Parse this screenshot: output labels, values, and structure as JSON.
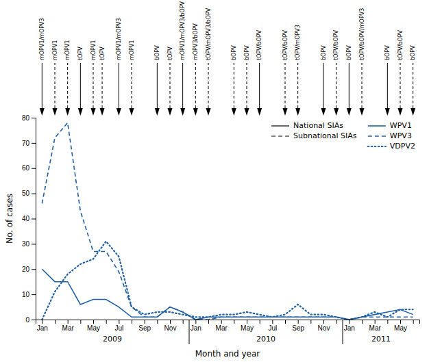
{
  "chart_data": {
    "type": "line",
    "x_label": "Month and year",
    "y_label": "No. of cases",
    "categories": [
      "Jan",
      null,
      "Mar",
      null,
      "May",
      null,
      "Jul",
      null,
      "Sep",
      null,
      "Nov",
      null,
      "Jan",
      null,
      "Mar",
      null,
      "May",
      null,
      "Jul",
      null,
      "Sep",
      null,
      "Nov",
      null,
      "Jan",
      null,
      "Mar",
      null,
      "May",
      null
    ],
    "ylim": [
      0,
      80
    ],
    "yticks": [
      0,
      10,
      20,
      30,
      40,
      50,
      60,
      70,
      80
    ],
    "grid": false,
    "legend": "upper right",
    "series": [
      {
        "name": "WPV1",
        "color": "#1f5fa6",
        "line_style": "solid",
        "values": [
          20,
          15,
          15,
          6,
          8,
          8,
          5,
          1,
          1,
          1,
          5,
          3,
          0,
          1,
          1,
          1,
          1,
          1,
          1,
          1,
          1,
          1,
          1,
          1,
          0,
          1,
          2,
          3,
          4,
          2
        ]
      },
      {
        "name": "WPV3",
        "color": "#1f5fa6",
        "line_style": "dashed",
        "values": [
          46,
          72,
          78,
          43,
          27,
          27,
          19,
          5,
          1,
          1,
          5,
          3,
          0,
          0,
          1,
          1,
          1,
          1,
          1,
          1,
          1,
          1,
          1,
          1,
          0,
          1,
          1,
          1,
          1,
          1
        ]
      },
      {
        "name": "VDPV2",
        "color": "#1f5fa6",
        "line_style": "dotted",
        "values": [
          0,
          11,
          18,
          22,
          24,
          31,
          25,
          5,
          2,
          3,
          3,
          2,
          1,
          1,
          2,
          2,
          3,
          2,
          1,
          2,
          6,
          2,
          2,
          1,
          0,
          1,
          3,
          1,
          4,
          4
        ]
      }
    ],
    "year_groups": [
      {
        "label": "2009",
        "count": 12
      },
      {
        "label": "2010",
        "count": 12
      },
      {
        "label": "2011",
        "count": 6
      }
    ],
    "annotation_legend": [
      {
        "name": "National SIAs",
        "line_style": "solid",
        "color": "#000000"
      },
      {
        "name": "Subnational SIAs",
        "line_style": "dashed",
        "color": "#000000"
      }
    ],
    "annotations": [
      {
        "x": 0.0,
        "text": "mOPV1/mOPV3",
        "line_style": "solid"
      },
      {
        "x": 1.0,
        "text": "mOPV1",
        "line_style": "dashed"
      },
      {
        "x": 2.0,
        "text": "mOPV1",
        "line_style": "dashed"
      },
      {
        "x": 3.0,
        "text": "tOPV",
        "line_style": "solid"
      },
      {
        "x": 4.0,
        "text": "mOPV1",
        "line_style": "dashed"
      },
      {
        "x": 4.7,
        "text": "tOPV",
        "line_style": "dashed"
      },
      {
        "x": 6.0,
        "text": "mOPV1/mOPV3",
        "line_style": "solid"
      },
      {
        "x": 7.0,
        "text": "mOPV1",
        "line_style": "dashed"
      },
      {
        "x": 9.0,
        "text": "bOPV",
        "line_style": "solid"
      },
      {
        "x": 10.0,
        "text": "tOPV",
        "line_style": "dashed"
      },
      {
        "x": 11.0,
        "text": "mOPV1/mOPV3/bOPV",
        "line_style": "solid"
      },
      {
        "x": 12.0,
        "text": "mOPV3/bOPV",
        "line_style": "dashed"
      },
      {
        "x": 13.0,
        "text": "tOPV/mOPV3/bOPV",
        "line_style": "dashed"
      },
      {
        "x": 15.0,
        "text": "bOPV",
        "line_style": "dashed"
      },
      {
        "x": 16.0,
        "text": "bOPV",
        "line_style": "dashed"
      },
      {
        "x": 17.0,
        "text": "tOPV/bOPV",
        "line_style": "solid"
      },
      {
        "x": 19.0,
        "text": "tOPV/bOPV",
        "line_style": "dashed"
      },
      {
        "x": 20.0,
        "text": "tOPV/mOPV3",
        "line_style": "dashed"
      },
      {
        "x": 22.0,
        "text": "bOPV",
        "line_style": "solid"
      },
      {
        "x": 23.0,
        "text": "tOPV/bOPV",
        "line_style": "dashed"
      },
      {
        "x": 24.0,
        "text": "bOPV",
        "line_style": "solid"
      },
      {
        "x": 25.0,
        "text": "tOPV/bOPV/mOPV3",
        "line_style": "dashed"
      },
      {
        "x": 27.0,
        "text": "bOPV",
        "line_style": "solid"
      },
      {
        "x": 28.0,
        "text": "tOPV/bOPV",
        "line_style": "dashed"
      },
      {
        "x": 29.0,
        "text": "bOPV",
        "line_style": "dashed"
      }
    ]
  }
}
